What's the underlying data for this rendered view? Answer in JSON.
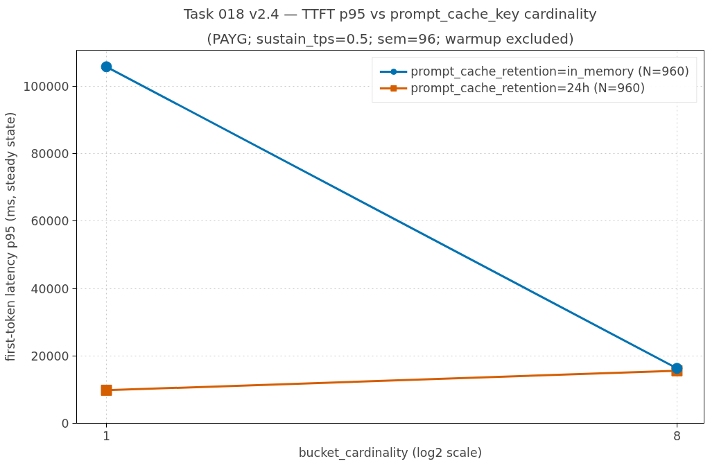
{
  "chart_data": {
    "type": "line",
    "title": "Task 018 v2.4 — TTFT p95 vs prompt_cache_key cardinality",
    "subtitle": "(PAYG; sustain_tps=0.5; sem=96; warmup excluded)",
    "xlabel": "bucket_cardinality (log2 scale)",
    "ylabel": "first-token latency p95 (ms, steady state)",
    "x": [
      1,
      8
    ],
    "log": "x",
    "series": [
      {
        "name": "prompt_cache_retention=in_memory (N=960)",
        "color": "#0072b2",
        "marker": "circle",
        "values": [
          105800,
          16300
        ]
      },
      {
        "name": "prompt_cache_retention=24h (N=960)",
        "color": "#d55e00",
        "marker": "square",
        "values": [
          9800,
          15600
        ]
      }
    ],
    "xlim": [
      0.897,
      8.83
    ],
    "ylim": [
      0,
      110700
    ],
    "xticks": [
      1,
      8
    ],
    "yticks": [
      0,
      20000,
      40000,
      60000,
      80000,
      100000
    ],
    "grid": true,
    "legend": "top right",
    "line_style": "solid"
  }
}
